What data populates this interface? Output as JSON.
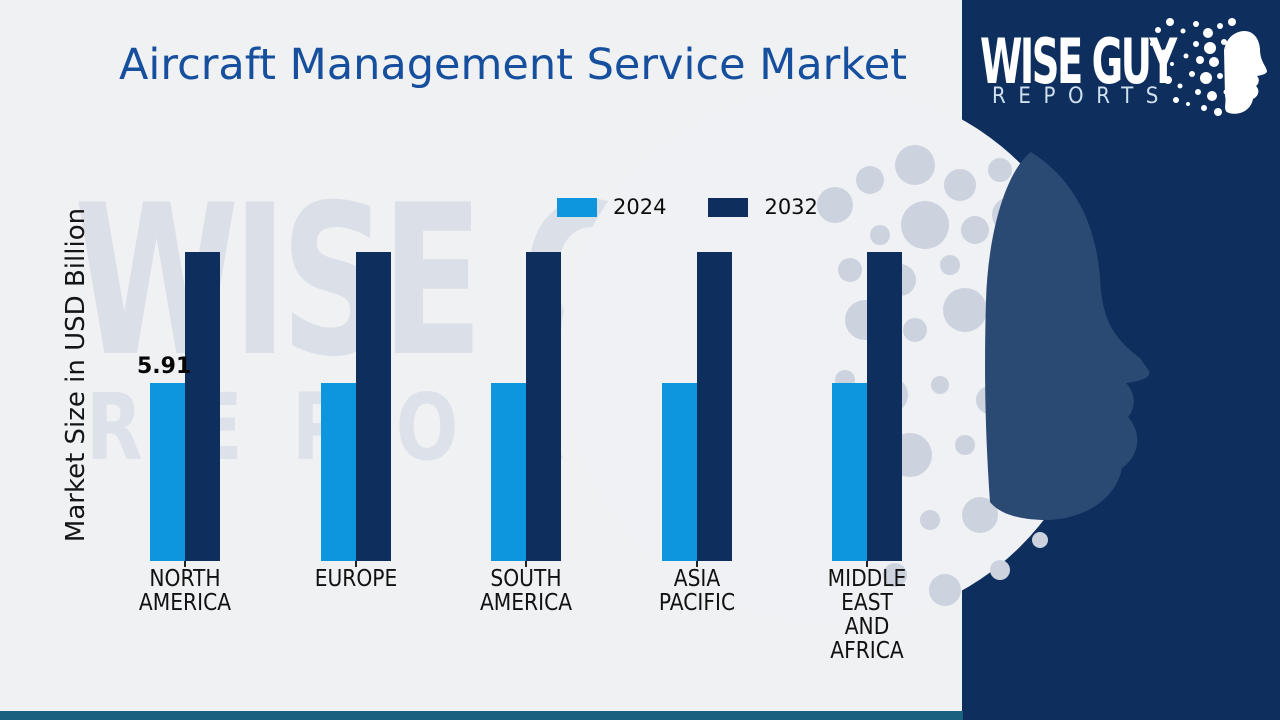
{
  "page": {
    "background": "#f0f1f3",
    "bottom_accent_color": "#1a617f"
  },
  "header": {
    "title": "Aircraft Management Service Market",
    "title_color": "#164f9e"
  },
  "chart_data": {
    "type": "bar",
    "title": "Aircraft Management Service Market",
    "xlabel": "",
    "ylabel": "Market Size in USD Billion",
    "categories": [
      "NORTH AMERICA",
      "EUROPE",
      "SOUTH AMERICA",
      "ASIA PACIFIC",
      "MIDDLE EAST AND AFRICA"
    ],
    "category_lines": [
      [
        "NORTH",
        "AMERICA"
      ],
      [
        "EUROPE"
      ],
      [
        "SOUTH",
        "AMERICA"
      ],
      [
        "ASIA",
        "PACIFIC"
      ],
      [
        "MIDDLE",
        "EAST",
        "AND",
        "AFRICA"
      ]
    ],
    "series": [
      {
        "name": "2024",
        "color": "#0d95dd",
        "values": [
          5.91,
          5.91,
          5.91,
          5.91,
          5.91
        ]
      },
      {
        "name": "2032",
        "color": "#0e2f5e",
        "values": [
          10.26,
          10.26,
          10.26,
          10.26,
          10.26
        ]
      }
    ],
    "data_labels": [
      {
        "series": "2024",
        "category": "NORTH AMERICA",
        "text": "5.91"
      }
    ],
    "legend_position": "top",
    "grid": false,
    "y_axis_tick_labels_visible": false,
    "ylim": [
      0,
      11
    ]
  },
  "legend": {
    "items": [
      {
        "label": "2024",
        "color": "#0d95dd"
      },
      {
        "label": "2032",
        "color": "#0e2f5e"
      }
    ]
  },
  "logo": {
    "brand_line1": "WISE GUY",
    "brand_line2": "REPORTS",
    "panel_color": "#0e2f5e"
  },
  "watermark": {
    "line1": "WISE GUY",
    "line2": "REPORTS"
  }
}
